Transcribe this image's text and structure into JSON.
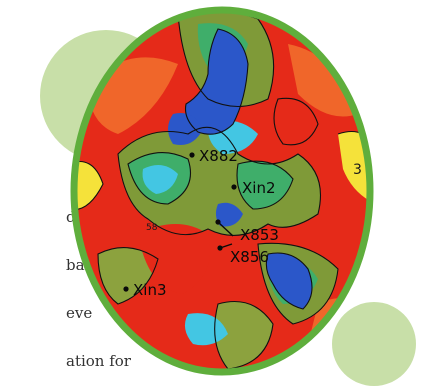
{
  "text_fragments": [
    "d to",
    "bally.",
    "eve",
    "ation for"
  ],
  "map": {
    "wells": [
      {
        "name": "X882",
        "dot": true
      },
      {
        "name": "Xin2",
        "dot": true
      },
      {
        "name": "X853",
        "dot": true
      },
      {
        "name": "X856",
        "dot": true
      },
      {
        "name": "Xin3",
        "dot": true
      }
    ],
    "contour_value": "58",
    "edge_value": "3"
  },
  "colors": {
    "ring": "#5fae3c",
    "decor_circle": "#c8dfa8",
    "attr_high": "#e52a19",
    "attr_mid": "#3fae6a",
    "attr_low": "#2b57c9",
    "attr_peak": "#f5e23a",
    "attr_cyan": "#43c6e3"
  }
}
